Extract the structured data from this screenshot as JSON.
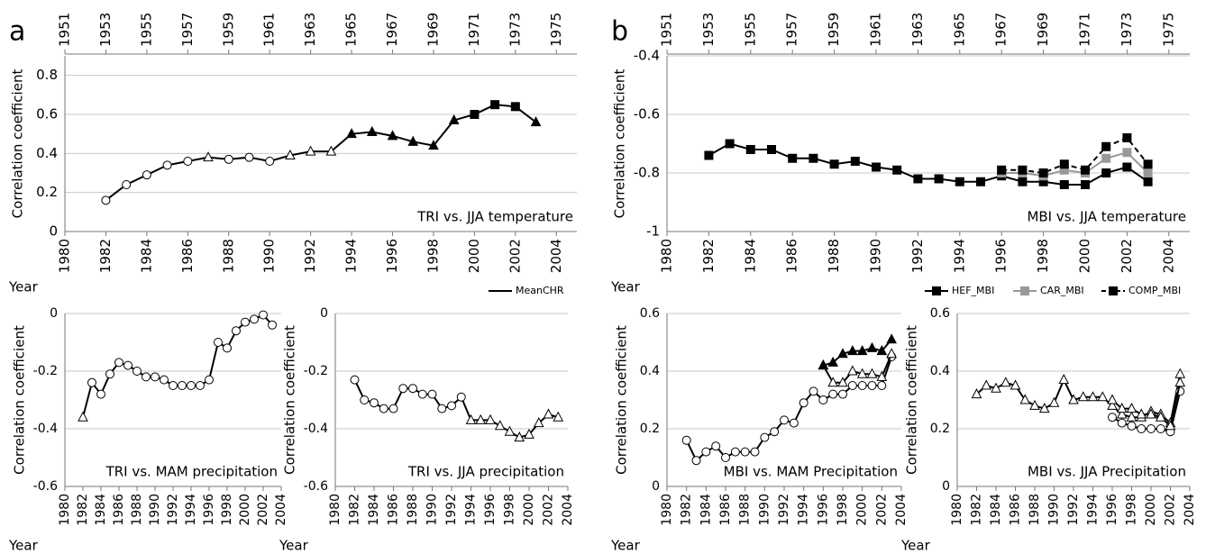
{
  "chart_data": [
    {
      "type": "line",
      "panel": "a",
      "title": "TRI vs. JJA temperature",
      "y_label": "Correlation coefficient",
      "x_label": "Year",
      "x": [
        1982,
        1983,
        1984,
        1985,
        1986,
        1987,
        1988,
        1989,
        1990,
        1991,
        1992,
        1993,
        1994,
        1995,
        1996,
        1997,
        1998,
        1999,
        2000,
        2001,
        2002,
        2003
      ],
      "xlim": [
        1980,
        2005
      ],
      "xticks": [
        1980,
        1982,
        1984,
        1986,
        1988,
        1990,
        1992,
        1994,
        1996,
        1998,
        2000,
        2002,
        2004
      ],
      "x2lim": [
        1951,
        1976
      ],
      "x2ticks": [
        1951,
        1953,
        1955,
        1957,
        1959,
        1961,
        1963,
        1965,
        1967,
        1969,
        1971,
        1973,
        1975
      ],
      "ylim": [
        0,
        0.9
      ],
      "yticks": [
        0,
        0.2,
        0.4,
        0.6,
        0.8
      ],
      "grid": true,
      "legend": "bottom-right",
      "series": [
        {
          "name": "MeanCHR",
          "color": "#000000",
          "dashed": false,
          "values": [
            0.16,
            0.24,
            0.29,
            0.34,
            0.36,
            0.38,
            0.37,
            0.38,
            0.36,
            0.39,
            0.41,
            0.41,
            0.5,
            0.51,
            0.49,
            0.46,
            0.44,
            0.57,
            0.6,
            0.65,
            0.64,
            0.56
          ],
          "markers": [
            "circle",
            "circle",
            "circle",
            "circle",
            "circle",
            "triangle-open",
            "circle",
            "circle",
            "circle",
            "triangle-open",
            "triangle-open",
            "triangle-open",
            "triangle",
            "triangle",
            "triangle",
            "triangle",
            "triangle",
            "triangle",
            "square",
            "square",
            "square",
            "triangle"
          ]
        }
      ]
    },
    {
      "type": "line",
      "panel": "b",
      "title": "MBI vs. JJA temperature",
      "y_label": "Correlation coefficient",
      "x_label": "Year",
      "x": [
        1982,
        1983,
        1984,
        1985,
        1986,
        1987,
        1988,
        1989,
        1990,
        1991,
        1992,
        1993,
        1994,
        1995,
        1996,
        1997,
        1998,
        1999,
        2000,
        2001,
        2002,
        2003
      ],
      "xlim": [
        1980,
        2005
      ],
      "xticks": [
        1980,
        1982,
        1984,
        1986,
        1988,
        1990,
        1992,
        1994,
        1996,
        1998,
        2000,
        2002,
        2004
      ],
      "x2lim": [
        1951,
        1976
      ],
      "x2ticks": [
        1951,
        1953,
        1955,
        1957,
        1959,
        1961,
        1963,
        1965,
        1967,
        1969,
        1971,
        1973,
        1975
      ],
      "ylim": [
        -1,
        -0.4
      ],
      "yticks": [
        -1,
        -0.8,
        -0.6,
        -0.4
      ],
      "grid": true,
      "legend": "bottom-right",
      "series": [
        {
          "name": "HEF_MBI",
          "color": "#000000",
          "dashed": false,
          "marker": "square",
          "values": [
            -0.74,
            -0.7,
            -0.72,
            -0.72,
            -0.75,
            -0.75,
            -0.77,
            -0.76,
            -0.78,
            -0.79,
            -0.82,
            -0.82,
            -0.83,
            -0.83,
            -0.81,
            -0.83,
            -0.83,
            -0.84,
            -0.84,
            -0.8,
            -0.78,
            -0.83
          ]
        },
        {
          "name": "CAR_MBI",
          "color": "#999999",
          "dashed": false,
          "marker": "square",
          "values": [
            null,
            null,
            null,
            null,
            null,
            null,
            null,
            null,
            null,
            null,
            null,
            null,
            null,
            null,
            -0.8,
            -0.8,
            -0.81,
            -0.79,
            -0.8,
            -0.75,
            -0.73,
            -0.8
          ]
        },
        {
          "name": "COMP_MBI",
          "color": "#000000",
          "dashed": true,
          "marker": "square",
          "values": [
            null,
            null,
            null,
            null,
            null,
            null,
            null,
            null,
            null,
            null,
            null,
            null,
            null,
            null,
            -0.79,
            -0.79,
            -0.8,
            -0.77,
            -0.79,
            -0.71,
            -0.68,
            -0.77
          ]
        }
      ]
    },
    {
      "type": "line",
      "title": "TRI vs. MAM precipitation",
      "y_label": "Correlation coefficient",
      "x_label": "Year",
      "x": [
        1982,
        1983,
        1984,
        1985,
        1986,
        1987,
        1988,
        1989,
        1990,
        1991,
        1992,
        1993,
        1994,
        1995,
        1996,
        1997,
        1998,
        1999,
        2000,
        2001,
        2002,
        2003
      ],
      "xlim": [
        1980,
        2004
      ],
      "xticks": [
        1980,
        1982,
        1984,
        1986,
        1988,
        1990,
        1992,
        1994,
        1996,
        1998,
        2000,
        2002,
        2004
      ],
      "ylim": [
        -0.6,
        0
      ],
      "yticks": [
        -0.6,
        -0.4,
        -0.2,
        0
      ],
      "grid": true,
      "series": [
        {
          "color": "#000000",
          "dashed": false,
          "values": [
            -0.36,
            -0.24,
            -0.28,
            -0.21,
            -0.17,
            -0.18,
            -0.2,
            -0.22,
            -0.22,
            -0.23,
            -0.25,
            -0.25,
            -0.25,
            -0.25,
            -0.23,
            -0.1,
            -0.12,
            -0.06,
            -0.03,
            -0.02,
            -0.005,
            -0.04
          ],
          "markers": [
            "triangle-open",
            "circle",
            "circle",
            "circle",
            "circle",
            "circle",
            "circle",
            "circle",
            "circle",
            "circle",
            "circle",
            "circle",
            "circle",
            "circle",
            "circle",
            "circle",
            "circle",
            "circle",
            "circle",
            "circle",
            "circle",
            "circle"
          ]
        }
      ]
    },
    {
      "type": "line",
      "title": "TRI vs. JJA precipitation",
      "y_label": "Correlation coefficient",
      "x_label": "Year",
      "x": [
        1982,
        1983,
        1984,
        1985,
        1986,
        1987,
        1988,
        1989,
        1990,
        1991,
        1992,
        1993,
        1994,
        1995,
        1996,
        1997,
        1998,
        1999,
        2000,
        2001,
        2002,
        2003
      ],
      "xlim": [
        1980,
        2004
      ],
      "xticks": [
        1980,
        1982,
        1984,
        1986,
        1988,
        1990,
        1992,
        1994,
        1996,
        1998,
        2000,
        2002,
        2004
      ],
      "ylim": [
        -0.6,
        0
      ],
      "yticks": [
        -0.6,
        -0.4,
        -0.2,
        0
      ],
      "grid": true,
      "series": [
        {
          "color": "#000000",
          "dashed": false,
          "values": [
            -0.23,
            -0.3,
            -0.31,
            -0.33,
            -0.33,
            -0.26,
            -0.26,
            -0.28,
            -0.28,
            -0.33,
            -0.32,
            -0.29,
            -0.37,
            -0.37,
            -0.37,
            -0.39,
            -0.41,
            -0.43,
            -0.42,
            -0.38,
            -0.35,
            -0.36
          ],
          "markers": [
            "circle",
            "circle",
            "circle",
            "circle",
            "circle",
            "circle",
            "circle",
            "circle",
            "circle",
            "circle",
            "circle",
            "circle",
            "triangle-open",
            "triangle-open",
            "triangle-open",
            "triangle-open",
            "triangle-open",
            "triangle-open",
            "triangle-open",
            "triangle-open",
            "triangle-open",
            "triangle-open"
          ]
        }
      ]
    },
    {
      "type": "line",
      "title": "MBI vs. MAM Precipitation",
      "y_label": "Correlation coefficient",
      "x_label": "Year",
      "x": [
        1982,
        1983,
        1984,
        1985,
        1986,
        1987,
        1988,
        1989,
        1990,
        1991,
        1992,
        1993,
        1994,
        1995,
        1996,
        1997,
        1998,
        1999,
        2000,
        2001,
        2002,
        2003
      ],
      "xlim": [
        1980,
        2004
      ],
      "xticks": [
        1980,
        1982,
        1984,
        1986,
        1988,
        1990,
        1992,
        1994,
        1996,
        1998,
        2000,
        2002,
        2004
      ],
      "ylim": [
        0,
        0.6
      ],
      "yticks": [
        0,
        0.2,
        0.4,
        0.6
      ],
      "grid": true,
      "series": [
        {
          "color": "#000000",
          "dashed": false,
          "marker": "circle",
          "values": [
            0.16,
            0.09,
            0.12,
            0.14,
            0.1,
            0.12,
            0.12,
            0.12,
            0.17,
            0.19,
            0.23,
            0.22,
            0.29,
            0.33,
            0.3,
            0.32,
            0.32,
            0.35,
            0.35,
            0.35,
            0.35,
            0.45
          ]
        },
        {
          "color": "#000000",
          "dashed": false,
          "marker": "triangle-open",
          "values": [
            null,
            null,
            null,
            null,
            null,
            null,
            null,
            null,
            null,
            null,
            null,
            null,
            null,
            null,
            0.42,
            0.36,
            0.36,
            0.4,
            0.39,
            0.39,
            0.38,
            0.46
          ]
        },
        {
          "color": "#000000",
          "dashed": false,
          "marker": "triangle",
          "values": [
            null,
            null,
            null,
            null,
            null,
            null,
            null,
            null,
            null,
            null,
            null,
            null,
            null,
            null,
            0.42,
            0.43,
            0.46,
            0.47,
            0.47,
            0.48,
            0.47,
            0.51
          ]
        }
      ]
    },
    {
      "type": "line",
      "title": "MBI vs. JJA Precipitation",
      "y_label": "Correlation coefficient",
      "x_label": "Year",
      "x": [
        1982,
        1983,
        1984,
        1985,
        1986,
        1987,
        1988,
        1989,
        1990,
        1991,
        1992,
        1993,
        1994,
        1995,
        1996,
        1997,
        1998,
        1999,
        2000,
        2001,
        2002,
        2003
      ],
      "xlim": [
        1980,
        2004
      ],
      "xticks": [
        1980,
        1982,
        1984,
        1986,
        1988,
        1990,
        1992,
        1994,
        1996,
        1998,
        2000,
        2002,
        2004
      ],
      "ylim": [
        0,
        0.6
      ],
      "yticks": [
        0,
        0.2,
        0.4,
        0.6
      ],
      "grid": true,
      "series": [
        {
          "color": "#000000",
          "dashed": false,
          "marker": "triangle-open",
          "values": [
            0.32,
            0.35,
            0.34,
            0.36,
            0.35,
            0.3,
            0.28,
            0.27,
            0.29,
            0.37,
            0.3,
            0.31,
            0.31,
            0.31,
            0.28,
            0.25,
            0.24,
            0.24,
            0.26,
            0.25,
            0.22,
            0.39
          ]
        },
        {
          "color": "#000000",
          "dashed": false,
          "marker": "circle",
          "values": [
            null,
            null,
            null,
            null,
            null,
            null,
            null,
            null,
            null,
            null,
            null,
            null,
            null,
            null,
            0.24,
            0.22,
            0.21,
            0.2,
            0.2,
            0.2,
            0.19,
            0.33
          ]
        },
        {
          "color": "#000000",
          "dashed": false,
          "marker": "triangle-open",
          "values": [
            null,
            null,
            null,
            null,
            null,
            null,
            null,
            null,
            null,
            null,
            null,
            null,
            null,
            null,
            0.3,
            0.27,
            0.27,
            0.25,
            0.25,
            0.24,
            0.21,
            0.36
          ]
        }
      ]
    }
  ]
}
